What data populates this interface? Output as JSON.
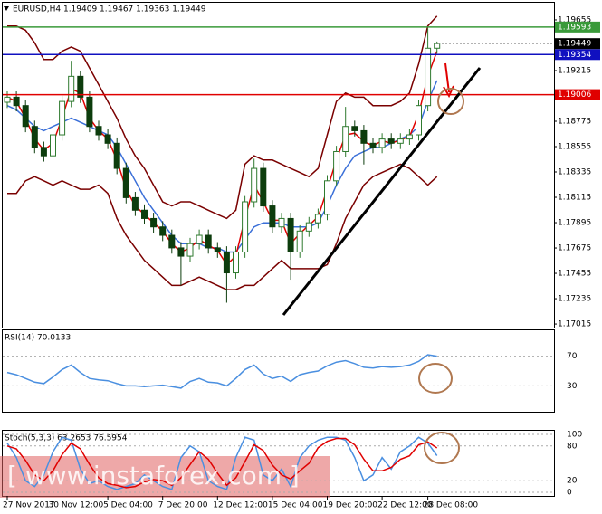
{
  "chart_data": {
    "type": "candlestick",
    "title": "EURUSD,H4  1.19409 1.19467 1.19363 1.19449",
    "categories": [
      "27 Nov 2017",
      null,
      null,
      null,
      null,
      "30 Nov 12:00",
      null,
      null,
      null,
      null,
      null,
      "5 Dec 04:00",
      null,
      null,
      null,
      null,
      null,
      "7 Dec 20:00",
      null,
      null,
      null,
      null,
      null,
      "12 Dec 12:00",
      null,
      null,
      null,
      null,
      null,
      "15 Dec 04:00",
      null,
      null,
      null,
      null,
      null,
      "19 Dec 20:00",
      null,
      null,
      null,
      null,
      null,
      "22 Dec 12:00",
      null,
      null,
      null,
      null,
      "28 Dec 08:00",
      null
    ],
    "open": [
      1.1894,
      1.18984,
      1.18911,
      1.1873,
      1.18548,
      1.18475,
      1.18657,
      1.18947,
      1.19165,
      1.18984,
      1.1873,
      1.18657,
      1.18584,
      1.18366,
      1.18112,
      1.18003,
      1.17931,
      1.17858,
      1.17785,
      1.17676,
      1.17604,
      1.17713,
      1.17785,
      1.17676,
      1.1764,
      1.17459,
      1.1764,
      1.18076,
      1.18366,
      1.1804,
      1.17858,
      1.17931,
      1.1764,
      1.17822,
      1.17894,
      1.17967,
      1.18258,
      1.18512,
      1.1873,
      1.18693,
      1.18584,
      1.18548,
      1.18621,
      1.18584,
      1.18621,
      1.18657,
      1.18911,
      1.19409
    ],
    "high": [
      1.19034,
      1.19034,
      1.18961,
      1.1878,
      1.18598,
      1.18707,
      1.18997,
      1.193,
      1.19215,
      1.19034,
      1.1878,
      1.18707,
      1.18634,
      1.18416,
      1.18162,
      1.18053,
      1.17981,
      1.17908,
      1.17835,
      1.17726,
      1.17763,
      1.17835,
      1.17835,
      1.17726,
      1.1769,
      1.1769,
      1.18126,
      1.1845,
      1.18416,
      1.1809,
      1.17981,
      1.17981,
      1.17872,
      1.17944,
      1.18017,
      1.18308,
      1.18562,
      1.189,
      1.1878,
      1.18743,
      1.18634,
      1.18671,
      1.18671,
      1.18671,
      1.18707,
      1.18961,
      1.1958,
      1.19467
    ],
    "low": [
      1.1889,
      1.18861,
      1.1868,
      1.18498,
      1.18425,
      1.18425,
      1.18607,
      1.18897,
      1.18934,
      1.1868,
      1.18607,
      1.18534,
      1.18316,
      1.18062,
      1.17953,
      1.17881,
      1.17808,
      1.17735,
      1.17626,
      1.1735,
      1.17554,
      1.17663,
      1.17626,
      1.1759,
      1.172,
      1.17409,
      1.1759,
      1.18026,
      1.1799,
      1.17808,
      1.17808,
      1.174,
      1.1759,
      1.17772,
      1.17844,
      1.17917,
      1.18208,
      1.18462,
      1.18643,
      1.184,
      1.18498,
      1.18498,
      1.18534,
      1.18534,
      1.18571,
      1.18607,
      1.18861,
      1.19363
    ],
    "close": [
      1.18984,
      1.18911,
      1.1873,
      1.18548,
      1.18475,
      1.18657,
      1.18947,
      1.19165,
      1.18984,
      1.1873,
      1.18657,
      1.18584,
      1.18366,
      1.18112,
      1.18003,
      1.17931,
      1.17858,
      1.17785,
      1.17676,
      1.17604,
      1.17713,
      1.17785,
      1.17676,
      1.1764,
      1.17459,
      1.1764,
      1.18076,
      1.18366,
      1.1804,
      1.17858,
      1.17931,
      1.1764,
      1.17822,
      1.17894,
      1.17967,
      1.18258,
      1.18512,
      1.1873,
      1.18693,
      1.18584,
      1.18548,
      1.18621,
      1.18584,
      1.18621,
      1.18657,
      1.18911,
      1.19409,
      1.19449
    ],
    "up_color": "#2f7a2f",
    "down_color": "#0d3d0d",
    "overlays": [
      {
        "color": "#7a0000",
        "values": [
          1.19601,
          1.19601,
          1.19565,
          1.19456,
          1.19311,
          1.19311,
          1.19383,
          1.1942,
          1.19383,
          1.19238,
          1.19093,
          1.18947,
          1.18802,
          1.18621,
          1.18475,
          1.18366,
          1.18221,
          1.18076,
          1.1804,
          1.18076,
          1.18076,
          1.1804,
          1.18003,
          1.17967,
          1.17931,
          1.18003,
          1.18403,
          1.18475,
          1.18439,
          1.18439,
          1.18403,
          1.18366,
          1.1833,
          1.18294,
          1.18366,
          1.18657,
          1.18947,
          1.1902,
          1.18984,
          1.18984,
          1.18911,
          1.18911,
          1.18911,
          1.18947,
          1.1902,
          1.19274,
          1.19601,
          1.19688
        ]
      },
      {
        "color": "#7a0000",
        "values": [
          1.18149,
          1.18149,
          1.18258,
          1.18294,
          1.18258,
          1.18221,
          1.18258,
          1.18221,
          1.18185,
          1.18185,
          1.18221,
          1.18149,
          1.17931,
          1.17785,
          1.17676,
          1.17567,
          1.17495,
          1.17422,
          1.1735,
          1.1735,
          1.17386,
          1.17422,
          1.17386,
          1.1735,
          1.17313,
          1.17313,
          1.1735,
          1.1735,
          1.17422,
          1.17495,
          1.17567,
          1.17495,
          1.17495,
          1.17495,
          1.17495,
          1.17531,
          1.17713,
          1.17931,
          1.18076,
          1.18221,
          1.18294,
          1.1833,
          1.18366,
          1.18403,
          1.18366,
          1.18294,
          1.18221,
          1.18294
        ]
      },
      {
        "color": "#3a6fd8",
        "values": [
          1.18911,
          1.18875,
          1.18802,
          1.1873,
          1.18693,
          1.1873,
          1.18766,
          1.18802,
          1.18766,
          1.1873,
          1.18693,
          1.18657,
          1.18548,
          1.18403,
          1.18258,
          1.18112,
          1.18003,
          1.17894,
          1.17785,
          1.17713,
          1.17713,
          1.17713,
          1.17676,
          1.17676,
          1.1764,
          1.1764,
          1.17749,
          1.17858,
          1.17894,
          1.17894,
          1.17894,
          1.17858,
          1.17858,
          1.17858,
          1.17894,
          1.1804,
          1.18221,
          1.18366,
          1.18475,
          1.18512,
          1.18548,
          1.18548,
          1.18584,
          1.18621,
          1.18657,
          1.1873,
          1.18947,
          1.19129
        ]
      },
      {
        "color": "#e00000",
        "values": [
          1.18984,
          1.18947,
          1.18802,
          1.18621,
          1.18526,
          1.18584,
          1.18802,
          1.19056,
          1.1902,
          1.18802,
          1.18693,
          1.18621,
          1.18439,
          1.18185,
          1.1804,
          1.17967,
          1.17894,
          1.17822,
          1.17713,
          1.1764,
          1.17676,
          1.17749,
          1.17698,
          1.17655,
          1.17531,
          1.17604,
          1.17931,
          1.18221,
          1.18076,
          1.17916,
          1.17916,
          1.17713,
          1.178,
          1.17873,
          1.17945,
          1.18185,
          1.18439,
          1.18657,
          1.18671,
          1.18599,
          1.18562,
          1.18606,
          1.18584,
          1.18613,
          1.18642,
          1.18838,
          1.19165,
          1.19383
        ]
      }
    ],
    "ylim": [
      1.16984,
      1.19804
    ],
    "yticks": [
      1.19655,
      1.19215,
      1.18775,
      1.18555,
      1.18335,
      1.18115,
      1.17895,
      1.17675,
      1.17455,
      1.17235,
      1.17015
    ],
    "levels": [
      {
        "value": 1.19593,
        "color": "#3a9a3a"
      },
      {
        "value": 1.19354,
        "color": "#1010c0"
      },
      {
        "value": 1.19006,
        "color": "#e00000"
      }
    ],
    "last_price": 1.19449,
    "indicators": [
      {
        "type": "line",
        "title": "RSI(14) 70.0133",
        "ylim": [
          0,
          100
        ],
        "yticks": [
          30,
          70
        ],
        "series": [
          {
            "color": "#4a8fe0",
            "values": [
              48,
              45,
              40,
              35,
              33,
              42,
              52,
              58,
              48,
              40,
              38,
              37,
              33,
              30,
              30,
              29,
              30,
              31,
              29,
              27,
              36,
              40,
              35,
              34,
              30,
              40,
              52,
              58,
              46,
              40,
              43,
              36,
              45,
              48,
              50,
              57,
              62,
              64,
              60,
              55,
              54,
              56,
              55,
              56,
              58,
              63,
              72,
              70.0133
            ]
          }
        ]
      },
      {
        "type": "line",
        "title": "Stoch(5,3,3) 63.2653 76.5954",
        "ylim": [
          0,
          100
        ],
        "yticks": [
          0,
          20,
          80,
          100
        ],
        "series": [
          {
            "color": "#4a8fe0",
            "values": [
              85,
              60,
              20,
              10,
              30,
              70,
              95,
              90,
              40,
              15,
              20,
              10,
              5,
              10,
              15,
              30,
              20,
              10,
              5,
              60,
              80,
              70,
              20,
              10,
              5,
              60,
              95,
              90,
              30,
              20,
              40,
              10,
              60,
              80,
              90,
              95,
              95,
              90,
              60,
              20,
              30,
              60,
              40,
              70,
              80,
              95,
              85,
              63.2653
            ]
          },
          {
            "color": "#e00000",
            "values": [
              80,
              75,
              55,
              30,
              20,
              37,
              65,
              85,
              75,
              48,
              25,
              15,
              12,
              8,
              10,
              18,
              22,
              20,
              12,
              25,
              48,
              70,
              57,
              33,
              12,
              25,
              53,
              82,
              72,
              47,
              30,
              23,
              37,
              50,
              77,
              88,
              93,
              93,
              82,
              57,
              37,
              37,
              43,
              57,
              63,
              82,
              87,
              76.5954
            ]
          }
        ]
      }
    ],
    "watermark": "[ www.instaforex.com ]"
  }
}
